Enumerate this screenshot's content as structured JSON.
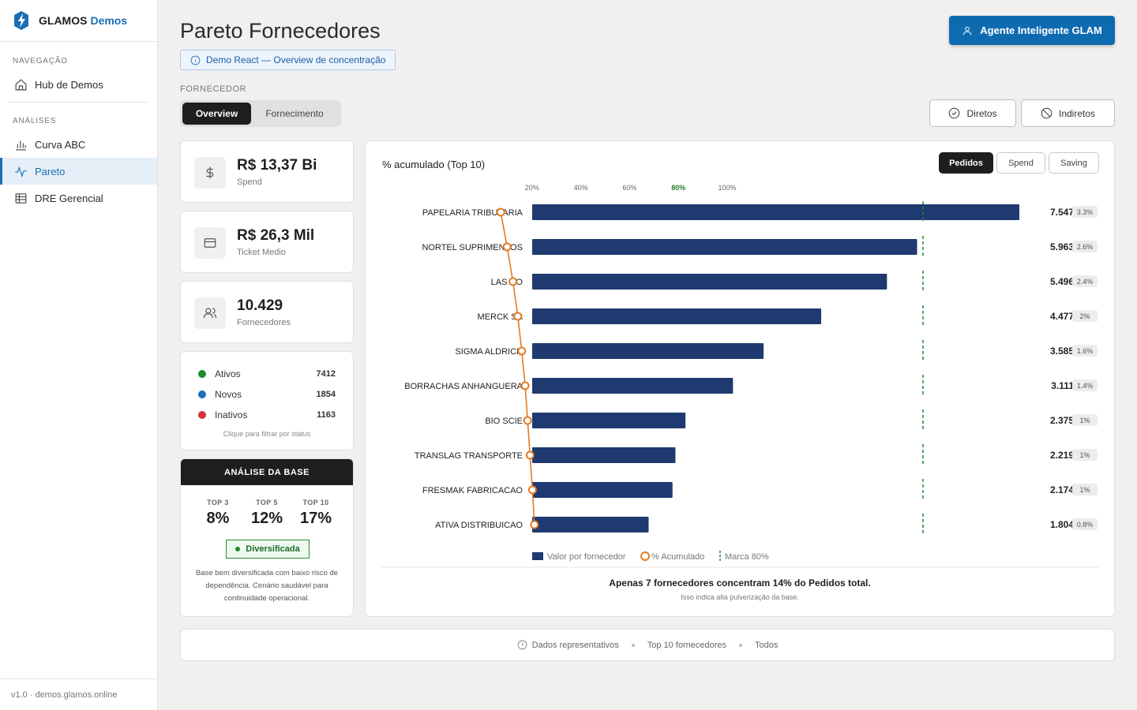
{
  "brand": {
    "name": "GLAMOS",
    "sub": "Demos"
  },
  "sidebar": {
    "section_nav": "NAVEGAÇÃO",
    "section_analises": "ANÁLISES",
    "items": [
      {
        "label": "Hub de Demos",
        "icon": "home-icon"
      },
      {
        "label": "Curva ABC",
        "icon": "bar-chart-icon"
      },
      {
        "label": "Pareto",
        "icon": "activity-icon"
      },
      {
        "label": "DRE Gerencial",
        "icon": "table-icon"
      }
    ],
    "footer": "v1.0 · demos.glamos.online"
  },
  "header": {
    "title": "Pareto Fornecedores",
    "badge": "Demo React — Overview de concentração",
    "agent_button": "Agente Inteligente GLAM"
  },
  "fornecedor": {
    "label": "FORNECEDOR",
    "tabs": [
      "Overview",
      "Fornecimento"
    ]
  },
  "filters": {
    "diretos": "Diretos",
    "indiretos": "Indiretos"
  },
  "kpis": [
    {
      "value": "R$ 13,37 Bi",
      "label": "Spend",
      "icon": "dollar-icon"
    },
    {
      "value": "R$ 26,3 Mil",
      "label": "Ticket Medio",
      "icon": "card-icon"
    },
    {
      "value": "10.429",
      "label": "Fornecedores",
      "icon": "users-icon"
    }
  ],
  "status": {
    "items": [
      {
        "label": "Ativos",
        "count": "7412",
        "color": "#1f8a2e"
      },
      {
        "label": "Novos",
        "count": "1854",
        "color": "#1a6fc4"
      },
      {
        "label": "Inativos",
        "count": "1163",
        "color": "#d13438"
      }
    ],
    "hint": "Clique para filtrar por status"
  },
  "analysis": {
    "title": "ANÁLISE DA BASE",
    "tops": [
      {
        "label": "TOP 3",
        "value": "8%"
      },
      {
        "label": "TOP 5",
        "value": "12%"
      },
      {
        "label": "TOP 10",
        "value": "17%"
      }
    ],
    "badge": "Diversificada",
    "text": "Base bem diversificada com baixo risco de dependência. Cenário saudável para continuidade operacional."
  },
  "chart_panel": {
    "title": "% acumulado (Top 10)",
    "metrics": [
      "Pedidos",
      "Spend",
      "Saving"
    ],
    "summary": "Apenas 7 fornecedores concentram 14% do Pedidos total.",
    "summary_sub": "Isso indica alta pulverização da base."
  },
  "chart_data": {
    "type": "bar",
    "orientation": "horizontal",
    "title": "% acumulado (Top 10)",
    "categories": [
      "PAPELARIA TRIBUTARIA",
      "NORTEL SUPRIMENTOS",
      "LAS DO",
      "MERCK SA",
      "SIGMA ALDRICH",
      "BORRACHAS ANHANGUERA",
      "BIO SCIE",
      "TRANSLAG TRANSPORTE",
      "FRESMAK FABRICACAO",
      "ATIVA DISTRIBUICAO"
    ],
    "values": [
      7547,
      5963,
      5496,
      4477,
      3585,
      3111,
      2375,
      2219,
      2174,
      1804
    ],
    "value_labels": [
      "7.547",
      "5.963",
      "5.496",
      "4.477",
      "3.585",
      "3.111",
      "2.375",
      "2.219",
      "2.174",
      "1.804"
    ],
    "share_labels": [
      "3.3%",
      "2.6%",
      "2.4%",
      "2%",
      "1.6%",
      "1.4%",
      "1%",
      "1%",
      "1%",
      "0.8%"
    ],
    "cumulative_pct": [
      3.3,
      5.9,
      8.3,
      10.3,
      11.9,
      13.3,
      14.3,
      15.3,
      16.3,
      17.1
    ],
    "axis_ticks": [
      "20%",
      "40%",
      "60%",
      "80%",
      "100%"
    ],
    "axis_tick_values": [
      20,
      40,
      60,
      80,
      100
    ],
    "marker_pct": 80,
    "legend": [
      "Valor por fornecedor",
      "% Acumulado",
      "Marca 80%"
    ],
    "colors": {
      "bar": "#1f3a70",
      "line": "#e07b24",
      "marker": "#1e8a2e"
    }
  },
  "footer": {
    "items": [
      "Dados representativos",
      "Top 10 fornecedores",
      "Todos"
    ]
  }
}
